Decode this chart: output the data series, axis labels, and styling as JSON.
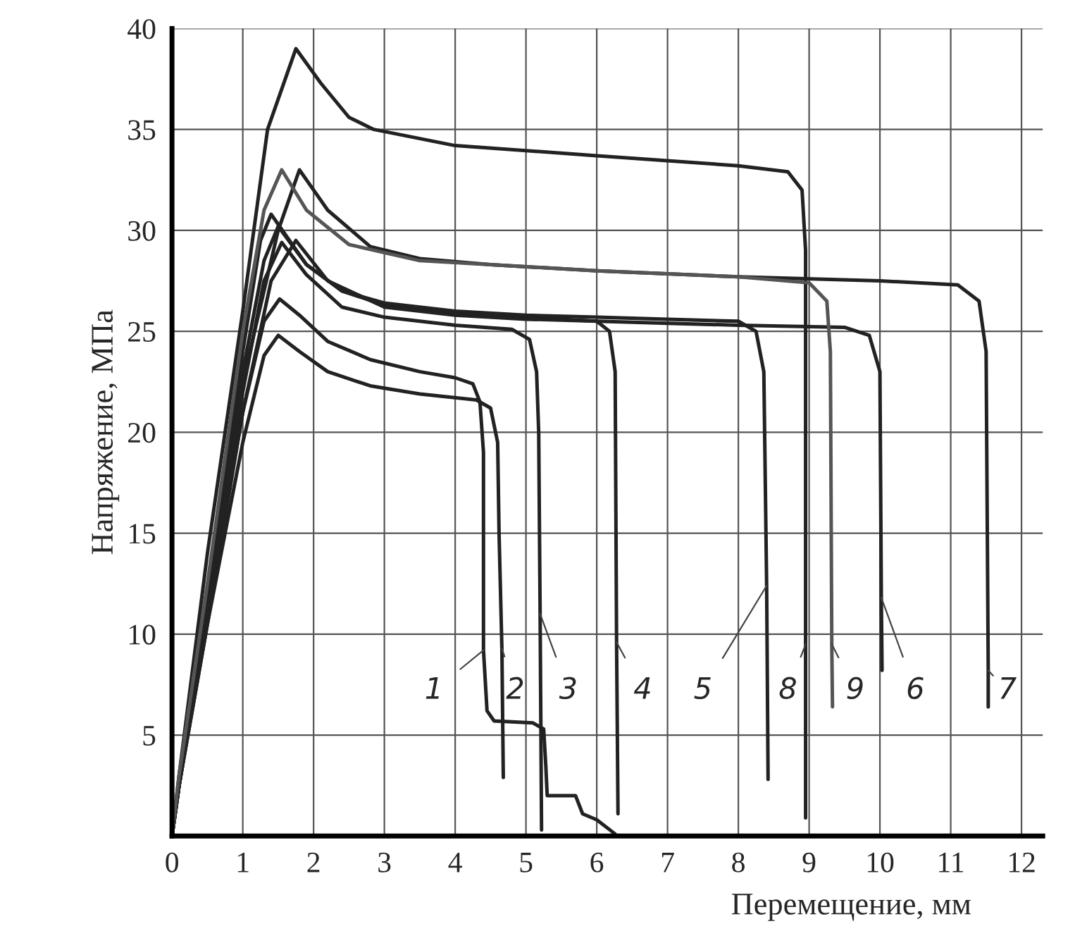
{
  "chart_data": {
    "type": "line",
    "xlabel": "Перемещение, мм",
    "ylabel": "Напряжение, МПа",
    "xlim": [
      0,
      12.3
    ],
    "ylim": [
      0,
      40
    ],
    "xticks": [
      0,
      1,
      2,
      3,
      4,
      5,
      6,
      7,
      8,
      9,
      10,
      11,
      12
    ],
    "yticks": [
      {
        "value": 0,
        "label": null
      },
      5,
      10,
      15,
      20,
      25,
      30,
      35,
      40
    ],
    "grid": true,
    "line_style": "solid",
    "series": [
      {
        "color": "#222222",
        "x": [
          0,
          0.1,
          0.5,
          1.0,
          1.3,
          1.52,
          1.8,
          2.2,
          2.8,
          3.5,
          4.0,
          4.25,
          4.35,
          4.4,
          4.4,
          4.45,
          4.55,
          5.1,
          5.25,
          5.28,
          5.3,
          5.7,
          5.8,
          6.0,
          6.26
        ],
        "values": [
          0,
          2.5,
          11,
          21,
          25.5,
          26.6,
          25.8,
          24.5,
          23.6,
          23.0,
          22.7,
          22.4,
          21.5,
          19,
          9.2,
          6.2,
          5.7,
          5.6,
          5.3,
          3.5,
          2.0,
          2.0,
          1.1,
          0.8,
          0.1
        ]
      },
      {
        "color": "#222222",
        "x": [
          0,
          0.1,
          0.5,
          1.0,
          1.3,
          1.5,
          1.8,
          2.2,
          2.8,
          3.5,
          4.3,
          4.5,
          4.6,
          4.62,
          4.66,
          4.68
        ],
        "values": [
          0,
          2.5,
          10.5,
          19.5,
          23.8,
          24.8,
          24,
          23,
          22.3,
          21.9,
          21.6,
          21.2,
          19.5,
          15,
          9.3,
          2.9
        ]
      },
      {
        "color": "#222222",
        "x": [
          0,
          0.1,
          0.5,
          1.0,
          1.3,
          1.55,
          1.9,
          2.4,
          3.0,
          4.0,
          4.8,
          5.05,
          5.15,
          5.18,
          5.2,
          5.22
        ],
        "values": [
          0,
          2.5,
          11,
          22,
          27.5,
          29.4,
          27.8,
          26.2,
          25.7,
          25.3,
          25.1,
          24.6,
          23,
          20,
          11,
          0.3
        ]
      },
      {
        "color": "#222222",
        "x": [
          0,
          0.1,
          0.5,
          1.0,
          1.3,
          1.5,
          1.9,
          2.4,
          3.0,
          4.0,
          5.0,
          6.0,
          6.18,
          6.26,
          6.28,
          6.3
        ],
        "values": [
          0,
          2.5,
          11.5,
          23,
          28.5,
          30.2,
          28.3,
          27,
          26.3,
          25.9,
          25.7,
          25.5,
          25,
          23,
          9.6,
          1.1
        ]
      },
      {
        "color": "#222222",
        "x": [
          0,
          0.1,
          0.5,
          1.0,
          1.25,
          1.4,
          1.9,
          2.4,
          3.0,
          4.0,
          5.0,
          6.0,
          7.0,
          8.0,
          8.25,
          8.36,
          8.4,
          8.42
        ],
        "values": [
          0,
          2.5,
          12,
          24,
          29.5,
          30.8,
          28.3,
          27,
          26.4,
          26,
          25.8,
          25.7,
          25.6,
          25.5,
          25,
          23,
          12.4,
          2.8
        ]
      },
      {
        "color": "#222222",
        "x": [
          0,
          0.1,
          0.5,
          1.0,
          1.4,
          1.75,
          2.2,
          3.0,
          4.0,
          5.0,
          6.0,
          7.0,
          8.0,
          9.5,
          9.85,
          10.0,
          10.02,
          10.03
        ],
        "values": [
          0,
          2.5,
          10.5,
          21,
          27.5,
          29.5,
          27.5,
          26.2,
          25.8,
          25.6,
          25.5,
          25.4,
          25.3,
          25.2,
          24.8,
          23,
          11.8,
          8.2
        ]
      },
      {
        "color": "#222222",
        "x": [
          0,
          0.1,
          0.5,
          1.0,
          1.5,
          1.8,
          2.2,
          2.8,
          3.5,
          4.5,
          6.0,
          8.0,
          10.0,
          11.1,
          11.4,
          11.5,
          11.53,
          11.53
        ],
        "values": [
          0,
          2.5,
          11,
          22.5,
          30,
          33,
          31,
          29.2,
          28.6,
          28.3,
          28,
          27.7,
          27.5,
          27.3,
          26.5,
          24,
          8.2,
          6.4
        ]
      },
      {
        "color": "#222222",
        "x": [
          0,
          0.1,
          0.5,
          1.0,
          1.35,
          1.75,
          2.1,
          2.5,
          2.85,
          4.0,
          6.0,
          8.0,
          8.7,
          8.9,
          8.95,
          8.95
        ],
        "values": [
          0,
          3,
          14,
          26,
          35,
          39,
          37.3,
          35.6,
          35.0,
          34.2,
          33.7,
          33.2,
          32.9,
          32,
          29,
          0.9
        ]
      },
      {
        "color": "#555555",
        "x": [
          0,
          0.1,
          0.5,
          1.0,
          1.3,
          1.55,
          1.9,
          2.5,
          3.5,
          4.5,
          6.0,
          8.0,
          9.0,
          9.25,
          9.3,
          9.32,
          9.33
        ],
        "values": [
          0,
          3,
          12.5,
          25,
          31,
          33,
          31,
          29.3,
          28.5,
          28.3,
          28,
          27.7,
          27.4,
          26.5,
          24,
          9.5,
          6.4
        ]
      }
    ],
    "annotations": [
      {
        "text": "1",
        "x": 4.4,
        "y": 9.2
      },
      {
        "text": "2",
        "x": 4.66,
        "y": 9.3
      },
      {
        "text": "3",
        "x": 5.2,
        "y": 11
      },
      {
        "text": "4",
        "x": 6.28,
        "y": 9.6
      },
      {
        "text": "5",
        "x": 8.4,
        "y": 12.4
      },
      {
        "text": "8",
        "x": 8.95,
        "y": 9.5
      },
      {
        "text": "9",
        "x": 9.32,
        "y": 9.5
      },
      {
        "text": "6",
        "x": 10.02,
        "y": 11.8
      },
      {
        "text": "7",
        "x": 11.53,
        "y": 8.2
      }
    ]
  }
}
